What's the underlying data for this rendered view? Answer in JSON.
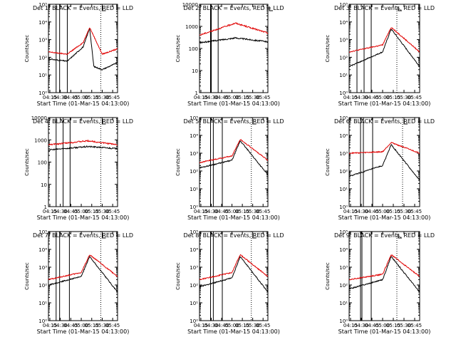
{
  "colors": {
    "events": "#000000",
    "lld": "#e00000",
    "axes": "#000000",
    "background": "#ffffff"
  },
  "chart_data": [
    {
      "type": "line",
      "title": "Det 1: BLACK = Events, RED = LLD",
      "ylabel": "Counts/sec",
      "xlabel": "Start Time (01-Mar-15 04:13:00)",
      "y_scale": "log",
      "ylim": [
        1,
        100000
      ],
      "ytick_labels": [
        "10⁰",
        "10¹",
        "10²",
        "10³",
        "10⁴",
        "10⁵"
      ],
      "xlim": [
        "04:13",
        "05:52"
      ],
      "xtick_labels": [
        "04:15",
        "04:30",
        "04:45",
        "05:00",
        "05:15",
        "05:30",
        "05:45"
      ],
      "solid_vlines": [
        "04:24",
        "04:29",
        "04:40"
      ],
      "dotted_vlines": [
        "05:28",
        "05:52"
      ],
      "shape": "flare",
      "series": [
        {
          "name": "Events",
          "color": "#000000",
          "values": [
            {
              "x": "04:13",
              "y": 80
            },
            {
              "x": "04:40",
              "y": 60
            },
            {
              "x": "05:03",
              "y": 400
            },
            {
              "x": "05:12",
              "y": 4500
            },
            {
              "x": "05:18",
              "y": 30
            },
            {
              "x": "05:30",
              "y": 20
            },
            {
              "x": "05:52",
              "y": 50
            }
          ]
        },
        {
          "name": "LLD",
          "color": "#e00000",
          "values": [
            {
              "x": "04:13",
              "y": 200
            },
            {
              "x": "04:40",
              "y": 150
            },
            {
              "x": "05:03",
              "y": 700
            },
            {
              "x": "05:12",
              "y": 5000
            },
            {
              "x": "05:30",
              "y": 150
            },
            {
              "x": "05:52",
              "y": 300
            }
          ]
        }
      ]
    },
    {
      "type": "line",
      "title": "Det 2: BLACK = Events, RED = LLD",
      "ylabel": "Counts/sec",
      "xlabel": "Start Time (01-Mar-15 04:13:00)",
      "y_scale": "log",
      "ylim": [
        1,
        10000
      ],
      "ytick_labels": [
        "1",
        "10",
        "100",
        "1000",
        "10000"
      ],
      "xlim": [
        "04:13",
        "05:52"
      ],
      "xtick_labels": [
        "04:15",
        "04:30",
        "04:45",
        "05:00",
        "05:15",
        "05:30",
        "05:45"
      ],
      "solid_vlines": [
        "04:29",
        "04:30",
        "04:40"
      ],
      "dotted_vlines": [
        "05:52"
      ],
      "shape": "bump",
      "series": [
        {
          "name": "Events",
          "color": "#000000",
          "values": [
            {
              "x": "04:13",
              "y": 180
            },
            {
              "x": "05:05",
              "y": 300
            },
            {
              "x": "05:52",
              "y": 200
            }
          ]
        },
        {
          "name": "LLD",
          "color": "#e00000",
          "values": [
            {
              "x": "04:13",
              "y": 400
            },
            {
              "x": "05:05",
              "y": 1400
            },
            {
              "x": "05:52",
              "y": 500
            }
          ]
        }
      ]
    },
    {
      "type": "line",
      "title": "Det 3: BLACK = Events, RED = LLD",
      "ylabel": "Counts/sec",
      "xlabel": "Start Time (01-Mar-15 04:13:00)",
      "y_scale": "log",
      "ylim": [
        1,
        100000
      ],
      "ytick_labels": [
        "10⁰",
        "10¹",
        "10²",
        "10³",
        "10⁴",
        "10⁵"
      ],
      "xlim": [
        "04:13",
        "05:52"
      ],
      "xtick_labels": [
        "04:15",
        "04:30",
        "04:45",
        "05:00",
        "05:15",
        "05:30",
        "05:45"
      ],
      "solid_vlines": [
        "04:24",
        "04:34",
        "04:44"
      ],
      "dotted_vlines": [
        "05:20",
        "05:52"
      ],
      "shape": "flare",
      "series": [
        {
          "name": "Events",
          "color": "#000000",
          "values": [
            {
              "x": "04:13",
              "y": 30
            },
            {
              "x": "05:00",
              "y": 200
            },
            {
              "x": "05:12",
              "y": 4000
            },
            {
              "x": "05:52",
              "y": 30
            }
          ]
        },
        {
          "name": "LLD",
          "color": "#e00000",
          "values": [
            {
              "x": "04:13",
              "y": 200
            },
            {
              "x": "05:00",
              "y": 500
            },
            {
              "x": "05:12",
              "y": 5000
            },
            {
              "x": "05:52",
              "y": 200
            }
          ]
        }
      ]
    },
    {
      "type": "line",
      "title": "Det 4: BLACK = Events, RED = LLD",
      "ylabel": "Counts/sec",
      "xlabel": "Start Time (01-Mar-15 04:13:00)",
      "y_scale": "log",
      "ylim": [
        1,
        10000
      ],
      "ytick_labels": [
        "1",
        "10",
        "100",
        "1000",
        "10000"
      ],
      "xlim": [
        "04:13",
        "05:52"
      ],
      "xtick_labels": [
        "04:15",
        "04:30",
        "04:45",
        "05:00",
        "05:15",
        "05:30",
        "05:45"
      ],
      "solid_vlines": [
        "04:24",
        "04:34",
        "04:44"
      ],
      "dotted_vlines": [
        "05:28",
        "05:52"
      ],
      "shape": "bump",
      "series": [
        {
          "name": "Events",
          "color": "#000000",
          "values": [
            {
              "x": "04:13",
              "y": 350
            },
            {
              "x": "05:10",
              "y": 500
            },
            {
              "x": "05:52",
              "y": 400
            }
          ]
        },
        {
          "name": "LLD",
          "color": "#e00000",
          "values": [
            {
              "x": "04:13",
              "y": 600
            },
            {
              "x": "05:10",
              "y": 900
            },
            {
              "x": "05:52",
              "y": 600
            }
          ]
        }
      ]
    },
    {
      "type": "line",
      "title": "Det 5: BLACK = Events, RED = LLD",
      "ylabel": "Counts/sec",
      "xlabel": "Start Time (01-Mar-15 04:13:00)",
      "y_scale": "log",
      "ylim": [
        1,
        100000
      ],
      "ytick_labels": [
        "10⁰",
        "10¹",
        "10²",
        "10³",
        "10⁴",
        "10⁵"
      ],
      "xlim": [
        "04:13",
        "05:52"
      ],
      "xtick_labels": [
        "04:15",
        "04:30",
        "04:45",
        "05:00",
        "05:15",
        "05:30",
        "05:45"
      ],
      "solid_vlines": [
        "04:29",
        "04:33",
        "04:46"
      ],
      "dotted_vlines": [
        "05:28",
        "05:52"
      ],
      "shape": "flare",
      "series": [
        {
          "name": "Events",
          "color": "#000000",
          "values": [
            {
              "x": "04:13",
              "y": 150
            },
            {
              "x": "05:00",
              "y": 400
            },
            {
              "x": "05:12",
              "y": 5000
            },
            {
              "x": "05:52",
              "y": 60
            }
          ]
        },
        {
          "name": "LLD",
          "color": "#e00000",
          "values": [
            {
              "x": "04:13",
              "y": 300
            },
            {
              "x": "05:00",
              "y": 700
            },
            {
              "x": "05:12",
              "y": 6000
            },
            {
              "x": "05:52",
              "y": 400
            }
          ]
        }
      ]
    },
    {
      "type": "line",
      "title": "Det 6: BLACK = Events, RED = LLD",
      "ylabel": "Counts/sec",
      "xlabel": "Start Time (01-Mar-15 04:13:00)",
      "y_scale": "log",
      "ylim": [
        1,
        100000
      ],
      "ytick_labels": [
        "10⁰",
        "10¹",
        "10²",
        "10³",
        "10⁴",
        "10⁵"
      ],
      "xlim": [
        "04:13",
        "05:52"
      ],
      "xtick_labels": [
        "04:15",
        "04:30",
        "04:45",
        "05:00",
        "05:15",
        "05:30",
        "05:45"
      ],
      "solid_vlines": [
        "04:29",
        "04:33",
        "04:46"
      ],
      "dotted_vlines": [
        "05:28",
        "05:52"
      ],
      "shape": "flare",
      "series": [
        {
          "name": "Events",
          "color": "#000000",
          "values": [
            {
              "x": "04:13",
              "y": 50
            },
            {
              "x": "05:00",
              "y": 200
            },
            {
              "x": "05:12",
              "y": 3000
            },
            {
              "x": "05:52",
              "y": 30
            }
          ]
        },
        {
          "name": "LLD",
          "color": "#e00000",
          "values": [
            {
              "x": "04:13",
              "y": 1000
            },
            {
              "x": "05:00",
              "y": 1200
            },
            {
              "x": "05:12",
              "y": 4000
            },
            {
              "x": "05:52",
              "y": 1000
            }
          ]
        }
      ]
    },
    {
      "type": "line",
      "title": "Det 7: BLACK = Events, RED = LLD",
      "ylabel": "Counts/sec",
      "xlabel": "Start Time (01-Mar-15 04:13:00)",
      "y_scale": "log",
      "ylim": [
        1,
        100000
      ],
      "ytick_labels": [
        "10⁰",
        "10¹",
        "10²",
        "10³",
        "10⁴",
        "10⁵"
      ],
      "xlim": [
        "04:13",
        "05:52"
      ],
      "xtick_labels": [
        "04:15",
        "04:30",
        "04:45",
        "05:00",
        "05:15",
        "05:30",
        "05:45"
      ],
      "solid_vlines": [
        "04:24",
        "04:29",
        "04:43"
      ],
      "dotted_vlines": [
        "05:28",
        "05:52"
      ],
      "shape": "flare",
      "series": [
        {
          "name": "Events",
          "color": "#000000",
          "values": [
            {
              "x": "04:13",
              "y": 100
            },
            {
              "x": "05:00",
              "y": 300
            },
            {
              "x": "05:12",
              "y": 4000
            },
            {
              "x": "05:52",
              "y": 40
            }
          ]
        },
        {
          "name": "LLD",
          "color": "#e00000",
          "values": [
            {
              "x": "04:13",
              "y": 200
            },
            {
              "x": "05:00",
              "y": 500
            },
            {
              "x": "05:12",
              "y": 5000
            },
            {
              "x": "05:52",
              "y": 300
            }
          ]
        }
      ]
    },
    {
      "type": "line",
      "title": "Det 8: BLACK = Events, RED = LLD",
      "ylabel": "Counts/sec",
      "xlabel": "Start Time (01-Mar-15 04:13:00)",
      "y_scale": "log",
      "ylim": [
        1,
        100000
      ],
      "ytick_labels": [
        "10⁰",
        "10¹",
        "10²",
        "10³",
        "10⁴",
        "10⁵"
      ],
      "xlim": [
        "04:13",
        "05:52"
      ],
      "xtick_labels": [
        "04:15",
        "04:30",
        "04:45",
        "05:00",
        "05:15",
        "05:30",
        "05:45"
      ],
      "solid_vlines": [
        "04:29",
        "04:33",
        "04:46"
      ],
      "dotted_vlines": [
        "05:28",
        "05:52"
      ],
      "shape": "flare",
      "series": [
        {
          "name": "Events",
          "color": "#000000",
          "values": [
            {
              "x": "04:13",
              "y": 80
            },
            {
              "x": "05:00",
              "y": 250
            },
            {
              "x": "05:12",
              "y": 4000
            },
            {
              "x": "05:52",
              "y": 40
            }
          ]
        },
        {
          "name": "LLD",
          "color": "#e00000",
          "values": [
            {
              "x": "04:13",
              "y": 200
            },
            {
              "x": "05:00",
              "y": 500
            },
            {
              "x": "05:12",
              "y": 5000
            },
            {
              "x": "05:52",
              "y": 300
            }
          ]
        }
      ]
    },
    {
      "type": "line",
      "title": "Det 9: BLACK = Events, RED = LLD",
      "ylabel": "Counts/sec",
      "xlabel": "Start Time (01-Mar-15 04:13:00)",
      "y_scale": "log",
      "ylim": [
        1,
        100000
      ],
      "ytick_labels": [
        "10⁰",
        "10¹",
        "10²",
        "10³",
        "10⁴",
        "10⁵"
      ],
      "xlim": [
        "04:13",
        "05:52"
      ],
      "xtick_labels": [
        "04:15",
        "04:30",
        "04:45",
        "05:00",
        "05:15",
        "05:30",
        "05:45"
      ],
      "solid_vlines": [
        "04:29",
        "04:31",
        "04:44"
      ],
      "dotted_vlines": [
        "05:20",
        "05:52"
      ],
      "shape": "flare",
      "series": [
        {
          "name": "Events",
          "color": "#000000",
          "values": [
            {
              "x": "04:13",
              "y": 60
            },
            {
              "x": "05:00",
              "y": 200
            },
            {
              "x": "05:12",
              "y": 4000
            },
            {
              "x": "05:52",
              "y": 40
            }
          ]
        },
        {
          "name": "LLD",
          "color": "#e00000",
          "values": [
            {
              "x": "04:13",
              "y": 200
            },
            {
              "x": "05:00",
              "y": 400
            },
            {
              "x": "05:12",
              "y": 5000
            },
            {
              "x": "05:52",
              "y": 300
            }
          ]
        }
      ]
    }
  ]
}
